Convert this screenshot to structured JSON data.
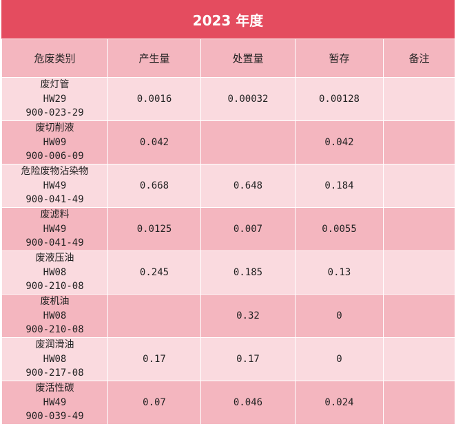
{
  "title": "2023 年度",
  "colors": {
    "title_bg": "#e44c5f",
    "header_bg": "#f4b6bf",
    "row_light": "#fadadf",
    "row_dark": "#f4b6bf"
  },
  "headers": [
    "危废类别",
    "产生量",
    "处置量",
    "暂存",
    "备注"
  ],
  "rows": [
    {
      "name": "废灯管",
      "hw": "HW29",
      "code": "900-023-29",
      "produced": "0.0016",
      "disposed": "0.00032",
      "stored": "0.00128",
      "note": ""
    },
    {
      "name": "废切削液",
      "hw": "HW09",
      "code": "900-006-09",
      "produced": "0.042",
      "disposed": "",
      "stored": "0.042",
      "note": ""
    },
    {
      "name": "危险废物沾染物",
      "hw": "HW49",
      "code": "900-041-49",
      "produced": "0.668",
      "disposed": "0.648",
      "stored": "0.184",
      "note": ""
    },
    {
      "name": "废滤料",
      "hw": "HW49",
      "code": "900-041-49",
      "produced": "0.0125",
      "disposed": "0.007",
      "stored": "0.0055",
      "note": ""
    },
    {
      "name": "废液压油",
      "hw": "HW08",
      "code": "900-210-08",
      "produced": "0.245",
      "disposed": "0.185",
      "stored": "0.13",
      "note": ""
    },
    {
      "name": "废机油",
      "hw": "HW08",
      "code": "900-210-08",
      "produced": "",
      "disposed": "0.32",
      "stored": "0",
      "note": ""
    },
    {
      "name": "废润滑油",
      "hw": "HW08",
      "code": "900-217-08",
      "produced": "0.17",
      "disposed": "0.17",
      "stored": "0",
      "note": ""
    },
    {
      "name": "废活性碳",
      "hw": "HW49",
      "code": "900-039-49",
      "produced": "0.07",
      "disposed": "0.046",
      "stored": "0.024",
      "note": ""
    }
  ]
}
